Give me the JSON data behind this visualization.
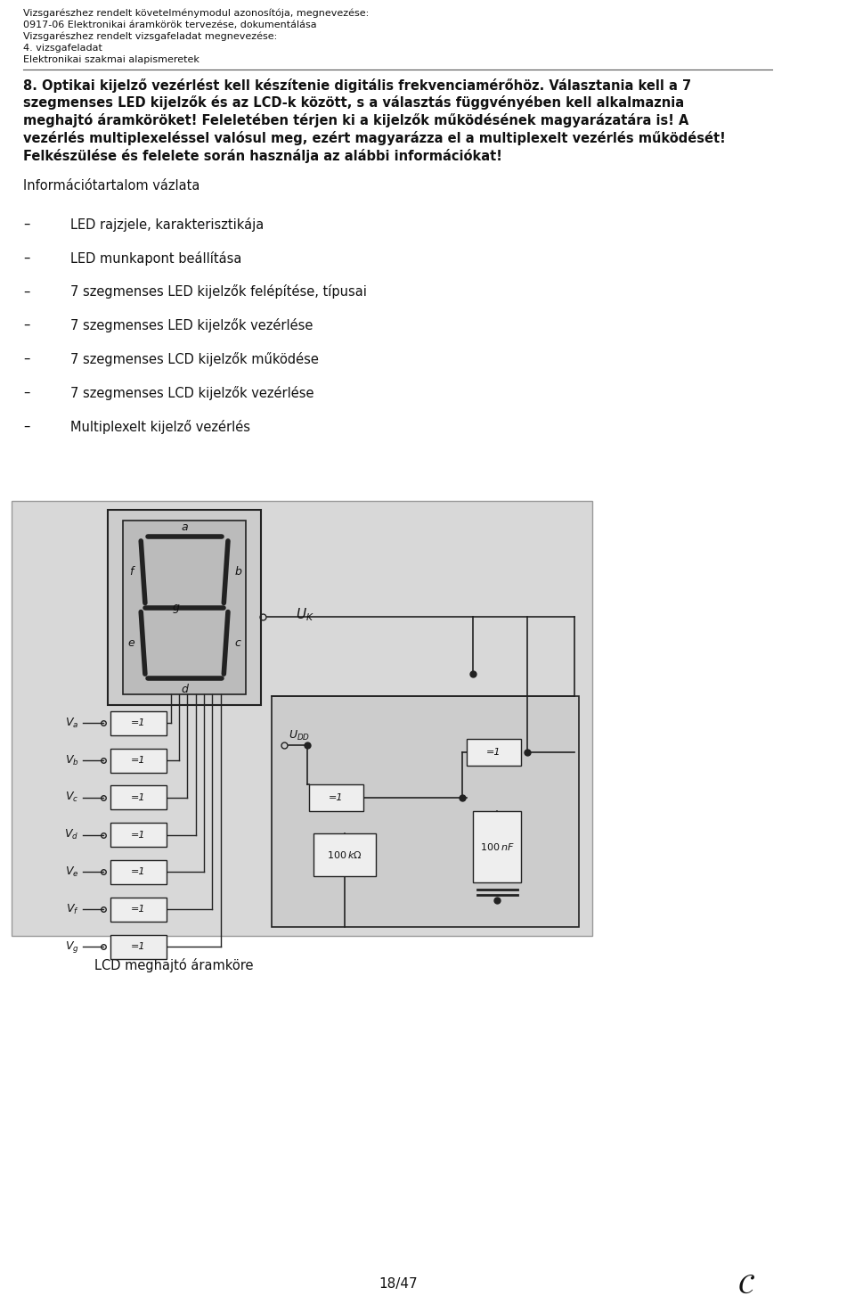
{
  "background_color": "#ffffff",
  "page_bg": "#e8e8e8",
  "header_lines": [
    "Vizsgarészhez rendelt követelménymodul azonosítója, megnevezése:",
    "0917-06 Elektronikai áramkörök tervezése, dokumentálása",
    "Vizsgarészhez rendelt vizsgafeladat megnevezése:",
    "4. vizsgafeladat",
    "Elektronikai szakmai alapismeretek"
  ],
  "task_lines": [
    "8. Optikai kijelző vezérlést kell készítenie digitális frekvenciamérőhöz. Választania kell a 7",
    "szegmenses LED kijelzők és az LCD-k között, s a választás függvényében kell alkalmaznia",
    "meghajtó áramköröket! Feleletében térjen ki a kijelzők működésének magyarázatára is! A",
    "vezérlés multiplexeléssel valósul meg, ezért magyarázza el a multiplexelt vezérlés működését!",
    "Felkészülése és felelete során használja az alábbi információkat!"
  ],
  "info_title": "Információtartalom vázlata",
  "bullet_items": [
    "LED rajzjele, karakterisztikája",
    "LED munkapont beállítása",
    "7 szegmenses LED kijelzők felépítése, típusai",
    "7 szegmenses LED kijelzők vezérlése",
    "7 szegmenses LCD kijelzők működése",
    "7 szegmenses LCD kijelzők vezérlése",
    "Multiplexelt kijelző vezérlés"
  ],
  "input_labels": [
    "Va",
    "Vb",
    "Vc",
    "Vd",
    "Ve",
    "Vf",
    "Vg"
  ],
  "image_caption": "LCD meghajtó áramköre",
  "page_number": "18/47",
  "text_color": "#111111",
  "line_color": "#222222",
  "diagram_bg": "#d8d8d8",
  "gate_bg": "#eeeeee",
  "header_fontsize": 8.0,
  "task_fontsize": 10.5,
  "info_fontsize": 10.5,
  "bullet_fontsize": 10.5,
  "caption_fontsize": 10.5
}
